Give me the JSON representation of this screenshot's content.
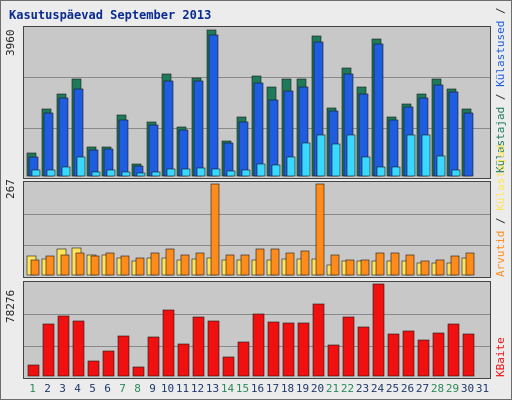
{
  "title": "Kasutuspäevad September 2013",
  "colors": {
    "frame_bg": "#ececec",
    "plot_bg": "#c8c8c8",
    "gridline": "#8a8a8a",
    "kulastajad": "#1f7a5a",
    "kulastused": "#1e5de0",
    "lehed": "#ff8c1a",
    "hits": "#ffe45a",
    "files": "#39d8ff",
    "bytes": "#f01010",
    "title": "#0a2a8e",
    "weekday": "#1f3a6b",
    "weekend": "#2a8a5a"
  },
  "chart_data": [
    {
      "type": "bar",
      "panel": "top",
      "ymax_label": "3960",
      "legend": [
        {
          "text": "Külastajad",
          "color": "#1f7a5a"
        },
        {
          "text": " / ",
          "color": "#333333"
        },
        {
          "text": "Külastused",
          "color": "#1e5de0"
        },
        {
          "text": " / ",
          "color": "#333333"
        },
        {
          "text": "Failid",
          "color": "#39d8ff"
        },
        {
          "text": " / ",
          "color": "#333333"
        },
        {
          "text": "Pöördumisi",
          "color": "#1f7a5a"
        }
      ],
      "ylim": [
        0,
        3960
      ],
      "categories": [
        "1",
        "2",
        "3",
        "4",
        "5",
        "6",
        "7",
        "8",
        "9",
        "10",
        "11",
        "12",
        "13",
        "14",
        "15",
        "16",
        "17",
        "18",
        "19",
        "20",
        "21",
        "22",
        "23",
        "24",
        "25",
        "26",
        "27",
        "28",
        "29",
        "30",
        "31"
      ],
      "series": [
        {
          "key": "kulastajad",
          "values": [
            620,
            1800,
            2200,
            2600,
            790,
            780,
            1650,
            330,
            1450,
            2750,
            1320,
            2650,
            3940,
            950,
            1600,
            2700,
            2400,
            2600,
            2600,
            3760,
            1830,
            2900,
            2400,
            3700,
            1580,
            1950,
            2200,
            2600,
            2350,
            1800,
            null
          ]
        },
        {
          "key": "kulastused",
          "values": [
            500,
            1700,
            2100,
            2350,
            700,
            720,
            1500,
            270,
            1380,
            2550,
            1250,
            2550,
            3800,
            880,
            1450,
            2500,
            2050,
            2300,
            2400,
            3600,
            1750,
            2750,
            2200,
            3550,
            1500,
            1850,
            2100,
            2450,
            2250,
            1700,
            null
          ]
        },
        {
          "key": "files",
          "values": [
            150,
            170,
            230,
            500,
            100,
            150,
            110,
            90,
            120,
            200,
            180,
            220,
            190,
            130,
            150,
            320,
            300,
            500,
            900,
            1100,
            850,
            1100,
            500,
            250,
            250,
            1100,
            1100,
            550,
            150,
            null,
            null
          ]
        }
      ]
    },
    {
      "type": "bar",
      "panel": "middle",
      "ymax_label": "267",
      "legend": [
        {
          "text": "Arvutid",
          "color": "#ff8c1a"
        },
        {
          "text": " / ",
          "color": "#333333"
        },
        {
          "text": "Külastajad",
          "color": "#ffe45a"
        }
      ],
      "ylim": [
        0,
        267
      ],
      "categories": [
        "1",
        "2",
        "3",
        "4",
        "5",
        "6",
        "7",
        "8",
        "9",
        "10",
        "11",
        "12",
        "13",
        "14",
        "15",
        "16",
        "17",
        "18",
        "19",
        "20",
        "21",
        "22",
        "23",
        "24",
        "25",
        "26",
        "27",
        "28",
        "29",
        "30",
        "31"
      ],
      "series": [
        {
          "key": "hits",
          "values": [
            55,
            48,
            75,
            78,
            58,
            58,
            50,
            40,
            50,
            50,
            45,
            48,
            50,
            45,
            45,
            45,
            45,
            48,
            48,
            48,
            30,
            40,
            42,
            40,
            40,
            40,
            35,
            35,
            35,
            50,
            null
          ]
        },
        {
          "key": "lehed",
          "values": [
            45,
            55,
            60,
            65,
            55,
            65,
            55,
            50,
            65,
            75,
            60,
            65,
            267,
            60,
            60,
            75,
            75,
            65,
            70,
            267,
            60,
            45,
            45,
            65,
            65,
            60,
            40,
            45,
            55,
            65,
            null
          ]
        }
      ]
    },
    {
      "type": "bar",
      "panel": "bottom",
      "ymax_label": "78276",
      "legend": [
        {
          "text": "KBaite",
          "color": "#f01010"
        }
      ],
      "ylim": [
        0,
        78276
      ],
      "categories": [
        "1",
        "2",
        "3",
        "4",
        "5",
        "6",
        "7",
        "8",
        "9",
        "10",
        "11",
        "12",
        "13",
        "14",
        "15",
        "16",
        "17",
        "18",
        "19",
        "20",
        "21",
        "22",
        "23",
        "24",
        "25",
        "26",
        "27",
        "28",
        "29",
        "30",
        "31"
      ],
      "series": [
        {
          "key": "bytes",
          "values": [
            9000,
            44000,
            51000,
            47000,
            13000,
            21000,
            34000,
            8000,
            33000,
            56000,
            27000,
            50000,
            47000,
            16000,
            29000,
            53000,
            46000,
            45000,
            45000,
            61000,
            26000,
            50000,
            42000,
            78276,
            36000,
            38000,
            31000,
            37000,
            44000,
            36000,
            null
          ]
        }
      ]
    }
  ],
  "weekend_days": [
    1,
    7,
    8,
    14,
    15,
    21,
    22,
    28,
    29
  ]
}
